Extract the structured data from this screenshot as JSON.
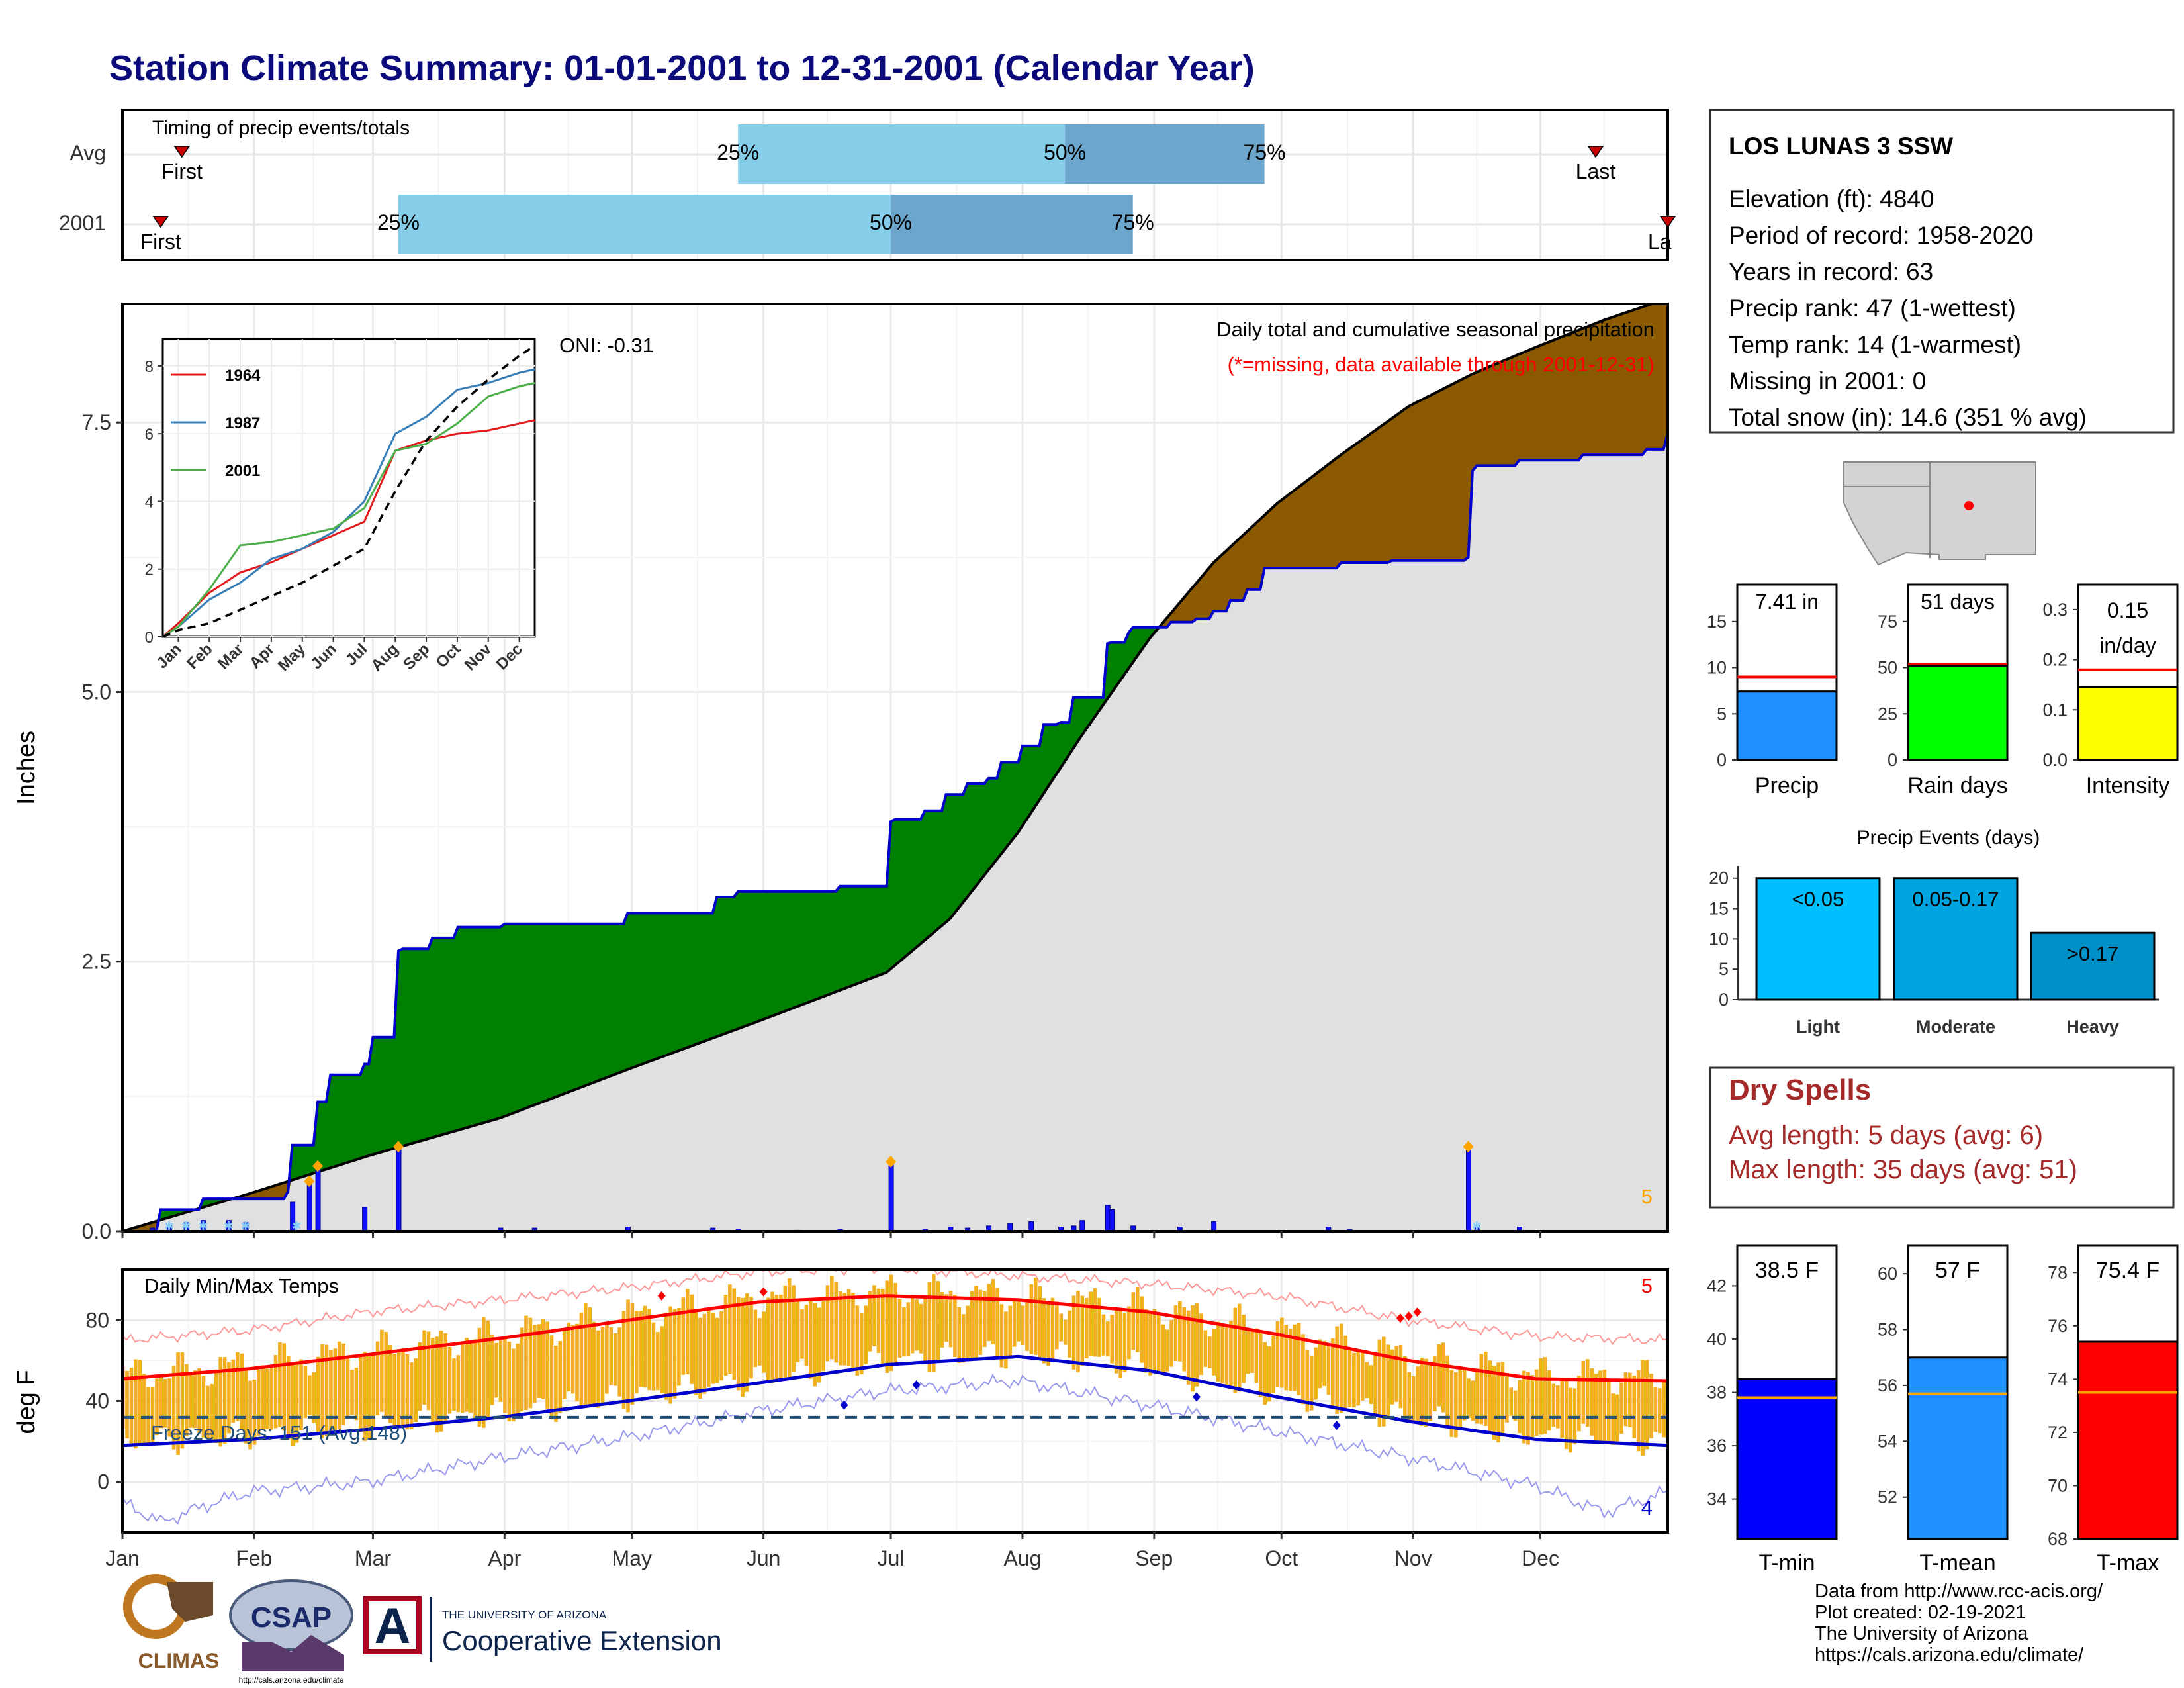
{
  "title": "Station Climate Summary: 01-01-2001 to 12-31-2001 (Calendar Year)",
  "colors": {
    "title": "#0a0a7a",
    "q1_bar": "#87ceeb",
    "q2_bar": "#6ca6cd",
    "above_avg_fill": "#008000",
    "below_avg_fill": "#8b5a00",
    "avg_fill": "#e0e0e0",
    "obs_line": "#0000cd",
    "precip_bar": "#1010ff",
    "marker_orange": "#ffa500",
    "tmax_line": "#ff0000",
    "tmin_line": "#0000cd",
    "temp_bar": "#f0b020",
    "dry_spells_text": "#a52a2a",
    "light": "#00bfff",
    "moderate": "#00a5e0",
    "heavy": "#0090c8"
  },
  "station": {
    "name": "LOS LUNAS 3 SSW",
    "lines": [
      "Elevation (ft): 4840",
      "Period of record: 1958-2020",
      "Years in record: 63",
      "Precip rank: 47 (1-wettest)",
      "Temp rank: 14 (1-warmest)",
      "Missing in 2001: 0",
      "Total snow (in): 14.6 (351 % avg)"
    ]
  },
  "timing_panel": {
    "label": "Timing of precip events/totals",
    "rows": [
      "Avg",
      "2001"
    ],
    "first_label": "First",
    "last_label": "Last",
    "last_label_cut": "La",
    "quantiles": [
      "25%",
      "50%",
      "75%"
    ],
    "avg_doy": {
      "first": 15,
      "q25": 146,
      "q50": 223,
      "q75": 270,
      "last": 348
    },
    "y2001_doy": {
      "first": 10,
      "q25": 66,
      "q50": 182,
      "q75": 239,
      "last": 365
    }
  },
  "main_panel": {
    "y_label": "Inches",
    "y_ticks": [
      "0.0",
      "2.5",
      "5.0",
      "7.5"
    ],
    "title": "Daily total and cumulative seasonal precipitation",
    "subtitle": "(*=missing, data available through 2001-12-31)",
    "oni": "ONI: -0.31",
    "count_label": "5"
  },
  "inset": {
    "y_ticks": [
      "0",
      "2",
      "4",
      "6",
      "8"
    ],
    "x_ticks": [
      "Jan",
      "Feb",
      "Mar",
      "Apr",
      "May",
      "Jun",
      "Jul",
      "Aug",
      "Sep",
      "Oct",
      "Nov",
      "Dec"
    ],
    "legend": [
      {
        "name": "1964",
        "color": "#e41a1c"
      },
      {
        "name": "1987",
        "color": "#377eb8"
      },
      {
        "name": "2001",
        "color": "#4daf4a"
      }
    ]
  },
  "temp_panel": {
    "title": "Daily Min/Max Temps",
    "y_label": "deg F",
    "y_ticks": [
      "0",
      "40",
      "80"
    ],
    "freeze_label": "Freeze Days: 151 (Avg:148)",
    "count_high": "5",
    "count_low": "4",
    "months": [
      "Jan",
      "Feb",
      "Mar",
      "Apr",
      "May",
      "Jun",
      "Jul",
      "Aug",
      "Sep",
      "Oct",
      "Nov",
      "Dec"
    ]
  },
  "precip_summary": [
    {
      "label": "Precip",
      "value_text": "7.41 in",
      "value": 7.41,
      "avg": 9.0,
      "ymax": 19,
      "ticks": [
        "0",
        "5",
        "10",
        "15"
      ],
      "tick_vals": [
        0,
        5,
        10,
        15
      ],
      "color": "#1e90ff"
    },
    {
      "label": "Rain days",
      "value_text": "51 days",
      "value": 51,
      "avg": 52,
      "ymax": 95,
      "ticks": [
        "0",
        "25",
        "50",
        "75"
      ],
      "tick_vals": [
        0,
        25,
        50,
        75
      ],
      "color": "#00ff00"
    },
    {
      "label": "Intensity",
      "value_text": "0.15 in/day",
      "value_line1": "0.15",
      "value_line2": "in/day",
      "value": 0.145,
      "avg": 0.18,
      "ymax": 0.35,
      "ticks": [
        "0.0",
        "0.1",
        "0.2",
        "0.3"
      ],
      "tick_vals": [
        0,
        0.1,
        0.2,
        0.3
      ],
      "color": "#ffff00"
    }
  ],
  "precip_events": {
    "title": "Precip Events (days)",
    "y_ticks": [
      "0",
      "5",
      "10",
      "15",
      "20"
    ],
    "bars": [
      {
        "category": "Light",
        "label": "<0.05",
        "value": 20
      },
      {
        "category": "Moderate",
        "label": "0.05-0.17",
        "value": 20
      },
      {
        "category": "Heavy",
        "label": ">0.17",
        "value": 11
      }
    ]
  },
  "dry_spells": {
    "title": "Dry Spells",
    "avg_length": "Avg length: 5 days (avg: 6)",
    "max_length": "Max length: 35 days (avg: 51)"
  },
  "temp_summary": [
    {
      "label": "T-min",
      "value_text": "38.5 F",
      "value": 38.5,
      "avg": 37.8,
      "ymin": 32.5,
      "ymax": 43.5,
      "ticks": [
        "34",
        "36",
        "38",
        "40",
        "42"
      ],
      "tick_vals": [
        34,
        36,
        38,
        40,
        42
      ],
      "color": "#0000ff"
    },
    {
      "label": "T-mean",
      "value_text": "57 F",
      "value": 57.0,
      "avg": 55.7,
      "ymin": 50.5,
      "ymax": 61,
      "ticks": [
        "52",
        "54",
        "56",
        "58",
        "60"
      ],
      "tick_vals": [
        52,
        54,
        56,
        58,
        60
      ],
      "color": "#1e90ff"
    },
    {
      "label": "T-max",
      "value_text": "75.4 F",
      "value": 75.4,
      "avg": 73.5,
      "ymin": 68,
      "ymax": 79,
      "ticks": [
        "68",
        "70",
        "72",
        "74",
        "76",
        "78"
      ],
      "tick_vals": [
        68,
        70,
        72,
        74,
        76,
        78
      ],
      "color": "#ff0000"
    }
  ],
  "logos": {
    "climas": "CLIMAS",
    "csap": "CSAP",
    "csap_url": "http://cals.arizona.edu/climate",
    "ua_line1": "THE UNIVERSITY OF ARIZONA",
    "ua_line2": "Cooperative Extension",
    "ua_mark": "A"
  },
  "footer": [
    "Data from http://www.rcc-acis.org/",
    "Plot created: 02-19-2021",
    "The University of Arizona",
    "https://cals.arizona.edu/climate/"
  ],
  "chart_data": [
    {
      "type": "area",
      "title": "Daily total and cumulative seasonal precipitation",
      "ylabel": "Inches",
      "ylim": [
        0,
        8.6
      ],
      "x_unit": "day of year 2001",
      "series": [
        {
          "name": "",
          "kind": "observed cumulative",
          "x": [
            1,
            10,
            20,
            40,
            41,
            45,
            47,
            50,
            51,
            55,
            58,
            60,
            66,
            67,
            74,
            80,
            91,
            120,
            141,
            146,
            160,
            170,
            182,
            183,
            190,
            195,
            200,
            205,
            208,
            213,
            218,
            222,
            225,
            233,
            234,
            238,
            239,
            240,
            248,
            254,
            258,
            262,
            266,
            270,
            288,
            300,
            318,
            319,
            320,
            330,
            345,
            360,
            365
          ],
          "y": [
            0,
            0.2,
            0.3,
            0.37,
            0.8,
            0.8,
            1.2,
            1.45,
            1.45,
            1.45,
            1.55,
            1.8,
            2.6,
            2.62,
            2.72,
            2.82,
            2.85,
            2.95,
            3.1,
            3.15,
            3.15,
            3.2,
            3.8,
            3.82,
            3.9,
            4.05,
            4.15,
            4.2,
            4.35,
            4.5,
            4.7,
            4.72,
            4.95,
            5.45,
            5.46,
            5.55,
            5.6,
            5.6,
            5.65,
            5.68,
            5.75,
            5.85,
            5.95,
            6.15,
            6.2,
            6.22,
            6.25,
            7.05,
            7.1,
            7.15,
            7.2,
            7.25,
            7.4
          ]
        },
        {
          "name": "",
          "kind": "average cumulative",
          "x": [
            1,
            31,
            59,
            90,
            120,
            151,
            181,
            196,
            212,
            227,
            243,
            258,
            273,
            288,
            304,
            319,
            334,
            350,
            365
          ],
          "y": [
            0,
            0.35,
            0.7,
            1.05,
            1.5,
            1.95,
            2.4,
            2.9,
            3.7,
            4.6,
            5.5,
            6.2,
            6.75,
            7.2,
            7.65,
            7.95,
            8.2,
            8.45,
            8.65
          ]
        }
      ]
    },
    {
      "type": "bar",
      "title": "",
      "ylabel": "Inches",
      "x_unit": "day of year 2001",
      "x": [
        8,
        12,
        16,
        20,
        26,
        30,
        41,
        45,
        47,
        58,
        66,
        90,
        98,
        120,
        140,
        146,
        160,
        170,
        182,
        190,
        196,
        200,
        205,
        210,
        215,
        222,
        225,
        227,
        233,
        234,
        239,
        250,
        258,
        285,
        290,
        318,
        320,
        330
      ],
      "values": [
        0.03,
        0.05,
        0.08,
        0.1,
        0.1,
        0.08,
        0.27,
        0.44,
        0.58,
        0.22,
        0.76,
        0.03,
        0.03,
        0.04,
        0.03,
        0.02,
        0.01,
        0.02,
        0.62,
        0.02,
        0.04,
        0.03,
        0.05,
        0.07,
        0.09,
        0.04,
        0.05,
        0.1,
        0.24,
        0.2,
        0.05,
        0.04,
        0.09,
        0.04,
        0.02,
        0.76,
        0.05,
        0.04
      ]
    },
    {
      "type": "line",
      "title": "",
      "x": [
        "Jan",
        "Feb",
        "Mar",
        "Apr",
        "May",
        "Jun",
        "Jul",
        "Aug",
        "Sep",
        "Oct",
        "Nov",
        "Dec"
      ],
      "series": [
        {
          "name": "1964",
          "values": [
            0.4,
            1.3,
            1.9,
            2.2,
            2.6,
            3.0,
            3.4,
            5.5,
            5.8,
            6.0,
            6.1,
            6.3
          ]
        },
        {
          "name": "1987",
          "values": [
            0.3,
            1.1,
            1.6,
            2.3,
            2.6,
            3.1,
            4.0,
            6.0,
            6.5,
            7.3,
            7.5,
            7.8
          ]
        },
        {
          "name": "2001",
          "values": [
            0.3,
            1.4,
            2.7,
            2.8,
            3.0,
            3.2,
            3.8,
            5.5,
            5.7,
            6.3,
            7.1,
            7.4
          ]
        },
        {
          "name": "",
          "kind": "average",
          "values": [
            0.2,
            0.4,
            0.8,
            1.2,
            1.6,
            2.1,
            2.6,
            4.3,
            5.8,
            6.8,
            7.6,
            8.3
          ]
        }
      ]
    },
    {
      "type": "line",
      "title": "Daily Min/Max Temps",
      "ylabel": "deg F",
      "ylim": [
        -25,
        105
      ],
      "x_unit": "day of year 2001",
      "freeze_line": 32,
      "series": [
        {
          "name": "",
          "kind": "normal max",
          "x": [
            1,
            31,
            59,
            90,
            120,
            151,
            181,
            212,
            243,
            273,
            304,
            334,
            365
          ],
          "y": [
            51,
            56,
            63,
            71,
            80,
            89,
            92,
            90,
            84,
            73,
            60,
            51,
            50
          ]
        },
        {
          "name": "",
          "kind": "normal min",
          "x": [
            1,
            31,
            59,
            90,
            120,
            151,
            181,
            212,
            243,
            273,
            304,
            334,
            365
          ],
          "y": [
            18,
            21,
            26,
            32,
            40,
            49,
            58,
            62,
            55,
            42,
            30,
            21,
            18
          ]
        },
        {
          "name": "",
          "kind": "record high",
          "x": [
            1,
            31,
            59,
            90,
            120,
            151,
            181,
            212,
            243,
            273,
            304,
            334,
            365
          ],
          "y": [
            70,
            75,
            84,
            90,
            96,
            104,
            106,
            102,
            98,
            92,
            80,
            72,
            70
          ]
        },
        {
          "name": "",
          "kind": "record low",
          "x": [
            1,
            10,
            20,
            31,
            59,
            90,
            120,
            151,
            181,
            212,
            243,
            273,
            304,
            334,
            350,
            365
          ],
          "y": [
            -10,
            -20,
            -12,
            -5,
            0,
            12,
            22,
            35,
            45,
            50,
            38,
            25,
            12,
            -2,
            -15,
            -5
          ]
        }
      ]
    },
    {
      "type": "bar",
      "title": "",
      "categories": [
        "Precip",
        "Rain days",
        "Intensity"
      ],
      "values": [
        7.41,
        51,
        0.15
      ]
    },
    {
      "type": "bar",
      "title": "Precip Events (days)",
      "categories": [
        "Light",
        "Moderate",
        "Heavy"
      ],
      "values": [
        20,
        20,
        11
      ]
    },
    {
      "type": "bar",
      "title": "",
      "categories": [
        "T-min",
        "T-mean",
        "T-max"
      ],
      "values": [
        38.5,
        57,
        75.4
      ]
    }
  ]
}
